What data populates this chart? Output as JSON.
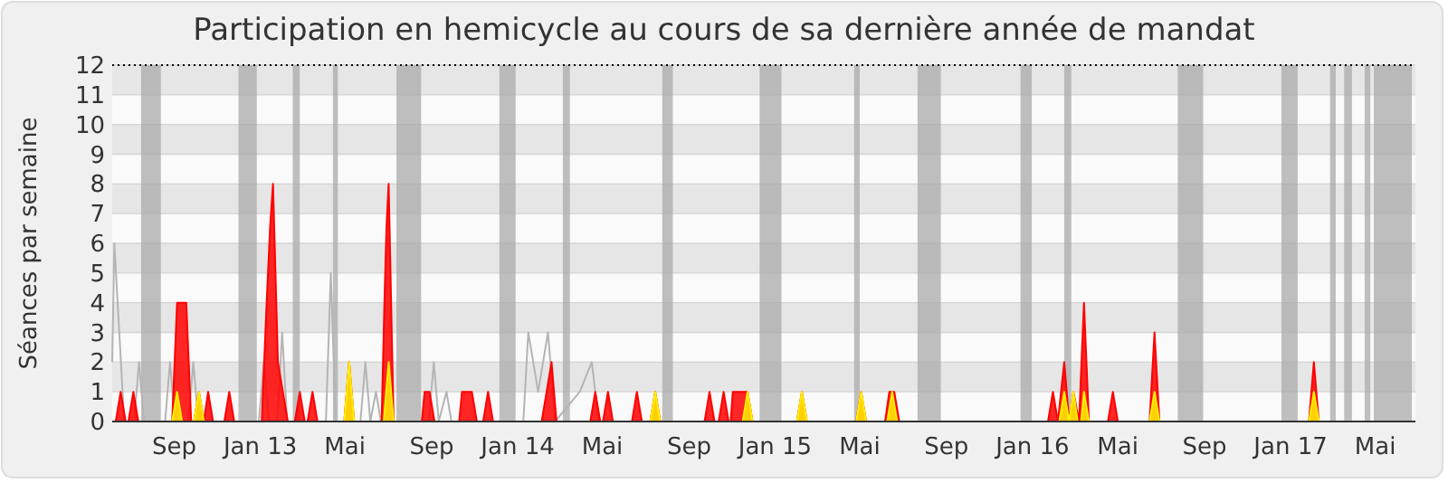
{
  "chart_data": {
    "type": "area",
    "title": "Participation en hemicycle au cours de sa dernière année de mandat",
    "ylabel": "Séances par semaine",
    "xlim": [
      "2012-06-05",
      "2017-06-27"
    ],
    "ylim": [
      0,
      12
    ],
    "yticks": [
      0,
      1,
      2,
      3,
      4,
      5,
      6,
      7,
      8,
      9,
      10,
      11,
      12
    ],
    "xticks": [
      {
        "value": "2012-09-01",
        "label": "Sep"
      },
      {
        "value": "2013-01-01",
        "label": "Jan 13"
      },
      {
        "value": "2013-05-01",
        "label": "Mai"
      },
      {
        "value": "2013-09-01",
        "label": "Sep"
      },
      {
        "value": "2014-01-01",
        "label": "Jan 14"
      },
      {
        "value": "2014-05-01",
        "label": "Mai"
      },
      {
        "value": "2014-09-01",
        "label": "Sep"
      },
      {
        "value": "2015-01-01",
        "label": "Jan 15"
      },
      {
        "value": "2015-05-01",
        "label": "Mai"
      },
      {
        "value": "2015-09-01",
        "label": "Sep"
      },
      {
        "value": "2016-01-01",
        "label": "Jan 16"
      },
      {
        "value": "2016-05-01",
        "label": "Mai"
      },
      {
        "value": "2016-09-01",
        "label": "Sep"
      },
      {
        "value": "2017-01-01",
        "label": "Jan 17"
      },
      {
        "value": "2017-05-01",
        "label": "Mai"
      }
    ],
    "grid": "y",
    "bands": [
      {
        "axis": "x",
        "from": "2012-07-16",
        "to": "2012-08-13",
        "color": "#aaaaaa"
      },
      {
        "axis": "x",
        "from": "2012-12-01",
        "to": "2012-12-27",
        "color": "#aaaaaa"
      },
      {
        "axis": "x",
        "from": "2013-02-16",
        "to": "2013-02-26",
        "color": "#aaaaaa"
      },
      {
        "axis": "x",
        "from": "2013-04-14",
        "to": "2013-04-21",
        "color": "#aaaaaa"
      },
      {
        "axis": "x",
        "from": "2013-07-13",
        "to": "2013-08-17",
        "color": "#aaaaaa"
      },
      {
        "axis": "x",
        "from": "2013-12-06",
        "to": "2013-12-29",
        "color": "#aaaaaa"
      },
      {
        "axis": "x",
        "from": "2014-03-06",
        "to": "2014-03-16",
        "color": "#aaaaaa"
      },
      {
        "axis": "x",
        "from": "2014-07-25",
        "to": "2014-08-09",
        "color": "#aaaaaa"
      },
      {
        "axis": "x",
        "from": "2014-12-10",
        "to": "2015-01-10",
        "color": "#aaaaaa"
      },
      {
        "axis": "x",
        "from": "2015-04-23",
        "to": "2015-05-01",
        "color": "#aaaaaa"
      },
      {
        "axis": "x",
        "from": "2015-07-22",
        "to": "2015-08-24",
        "color": "#aaaaaa"
      },
      {
        "axis": "x",
        "from": "2015-12-15",
        "to": "2015-12-31",
        "color": "#aaaaaa"
      },
      {
        "axis": "x",
        "from": "2016-02-15",
        "to": "2016-02-25",
        "color": "#aaaaaa"
      },
      {
        "axis": "x",
        "from": "2016-07-25",
        "to": "2016-08-30",
        "color": "#aaaaaa"
      },
      {
        "axis": "x",
        "from": "2016-12-19",
        "to": "2017-01-11",
        "color": "#aaaaaa"
      },
      {
        "axis": "x",
        "from": "2017-02-26",
        "to": "2017-03-06",
        "color": "#aaaaaa"
      },
      {
        "axis": "x",
        "from": "2017-03-18",
        "to": "2017-03-29",
        "color": "#aaaaaa"
      },
      {
        "axis": "x",
        "from": "2017-04-16",
        "to": "2017-04-24",
        "color": "#aaaaaa"
      },
      {
        "axis": "x",
        "from": "2017-04-29",
        "to": "2017-06-22",
        "color": "#aaaaaa"
      }
    ],
    "series": [
      {
        "type": "line",
        "color": "#b4b4b4",
        "x": [
          "2012-06-05",
          "2012-06-08",
          "2012-06-22",
          "2012-07-06",
          "2012-07-13",
          "2012-07-20",
          "2012-08-19",
          "2012-08-26",
          "2012-09-02",
          "2012-09-21",
          "2012-09-28",
          "2012-10-05",
          "2012-12-30",
          "2013-01-06",
          "2013-01-13",
          "2013-01-25",
          "2013-02-01",
          "2013-02-08",
          "2013-04-04",
          "2013-04-11",
          "2013-04-18",
          "2013-05-23",
          "2013-05-30",
          "2013-06-06",
          "2013-06-14",
          "2013-06-21",
          "2013-08-28",
          "2013-09-04",
          "2013-09-11",
          "2013-09-22",
          "2013-09-29",
          "2014-01-09",
          "2014-01-16",
          "2014-01-30",
          "2014-02-13",
          "2014-02-23",
          "2014-03-30",
          "2014-04-16",
          "2014-04-26"
        ],
        "values": [
          2,
          6,
          0,
          0,
          2,
          0,
          0,
          2,
          0,
          0,
          2,
          0,
          0,
          2,
          0,
          0,
          3,
          0,
          0,
          5,
          0,
          0,
          2,
          0,
          1,
          0,
          0,
          2,
          0,
          1,
          0,
          0,
          3,
          1,
          3,
          0,
          1,
          2,
          0
        ]
      },
      {
        "type": "area",
        "color": "#ff0000",
        "x": [
          "2012-06-10",
          "2012-06-17",
          "2012-06-24",
          "2012-06-28",
          "2012-07-05",
          "2012-07-12",
          "2012-08-29",
          "2012-09-05",
          "2012-09-18",
          "2012-09-25",
          "2012-09-29",
          "2012-10-06",
          "2012-10-13",
          "2012-10-19",
          "2012-10-26",
          "2012-11-11",
          "2012-11-18",
          "2012-11-25",
          "2013-01-03",
          "2013-01-10",
          "2013-01-15",
          "2013-01-19",
          "2013-01-26",
          "2013-02-02",
          "2013-02-09",
          "2013-02-19",
          "2013-02-26",
          "2013-03-05",
          "2013-03-09",
          "2013-03-16",
          "2013-03-23",
          "2013-04-30",
          "2013-05-07",
          "2013-05-14",
          "2013-06-22",
          "2013-06-26",
          "2013-06-29",
          "2013-07-02",
          "2013-07-09",
          "2013-08-18",
          "2013-08-22",
          "2013-08-29",
          "2013-09-05",
          "2013-10-10",
          "2013-10-14",
          "2013-10-28",
          "2013-11-04",
          "2013-11-13",
          "2013-11-20",
          "2013-11-27",
          "2014-02-04",
          "2014-02-11",
          "2014-02-18",
          "2014-02-25",
          "2014-04-14",
          "2014-04-21",
          "2014-04-28",
          "2014-05-02",
          "2014-05-09",
          "2014-05-16",
          "2014-06-12",
          "2014-06-19",
          "2014-06-26",
          "2014-07-08",
          "2014-07-15",
          "2014-07-22",
          "2014-09-23",
          "2014-09-30",
          "2014-10-07",
          "2014-10-13",
          "2014-10-20",
          "2014-10-27",
          "2014-10-30",
          "2014-11-02",
          "2014-11-23",
          "2014-11-30",
          "2015-02-01",
          "2015-02-08",
          "2015-02-15",
          "2015-04-26",
          "2015-05-03",
          "2015-05-10",
          "2015-06-06",
          "2015-06-12",
          "2015-06-19",
          "2015-06-26",
          "2016-01-23",
          "2016-01-30",
          "2016-02-06",
          "2016-02-15",
          "2016-02-22",
          "2016-02-28",
          "2016-03-07",
          "2016-03-14",
          "2016-03-21",
          "2016-04-17",
          "2016-04-24",
          "2016-05-01",
          "2016-06-15",
          "2016-06-22",
          "2016-06-29",
          "2017-01-27",
          "2017-02-03",
          "2017-02-10"
        ],
        "values": [
          0,
          1,
          0,
          0,
          1,
          0,
          0,
          4,
          4,
          0,
          0,
          1,
          0,
          1,
          0,
          0,
          1,
          0,
          0,
          4,
          6.6,
          8,
          2,
          1,
          0,
          0,
          1,
          0,
          0,
          1,
          0,
          0,
          2,
          0,
          0,
          4,
          6.6,
          8,
          0,
          0,
          1,
          1,
          0,
          0,
          1,
          1,
          0,
          0,
          1,
          0,
          0,
          1,
          2,
          0,
          0,
          1,
          0,
          0,
          1,
          0,
          0,
          1,
          0,
          0,
          1,
          0,
          0,
          1,
          0,
          0,
          1,
          0,
          0,
          1,
          1,
          0,
          0,
          1,
          0,
          0,
          1,
          0,
          0,
          1,
          1,
          0,
          0,
          1,
          0,
          2,
          0,
          1,
          0,
          4,
          0,
          0,
          1,
          0,
          0,
          3,
          0,
          0,
          2,
          0
        ]
      },
      {
        "type": "area",
        "color": "#ffee00",
        "x": [
          "2012-08-29",
          "2012-09-05",
          "2012-09-12",
          "2012-09-29",
          "2012-10-06",
          "2012-10-13",
          "2013-04-30",
          "2013-05-07",
          "2013-05-14",
          "2013-06-25",
          "2013-07-02",
          "2013-07-09",
          "2014-07-08",
          "2014-07-15",
          "2014-07-22",
          "2014-11-16",
          "2014-11-23",
          "2014-11-30",
          "2015-02-01",
          "2015-02-08",
          "2015-02-15",
          "2015-04-26",
          "2015-05-03",
          "2015-05-10",
          "2015-06-09",
          "2015-06-16",
          "2015-06-23",
          "2016-02-08",
          "2016-02-15",
          "2016-02-22",
          "2016-02-28",
          "2016-03-05",
          "2016-03-10",
          "2016-03-14",
          "2016-03-21",
          "2016-06-15",
          "2016-06-22",
          "2016-06-29",
          "2017-01-27",
          "2017-02-03",
          "2017-02-10"
        ],
        "values": [
          0,
          1,
          0,
          0,
          1,
          0,
          0,
          2,
          0,
          0,
          2,
          0,
          0,
          1,
          0,
          0,
          1,
          0,
          0,
          1,
          0,
          0,
          1,
          0,
          0,
          1,
          0,
          0,
          1,
          0,
          1,
          0,
          0,
          1,
          0,
          0,
          1,
          0,
          0,
          1,
          0
        ]
      }
    ]
  }
}
